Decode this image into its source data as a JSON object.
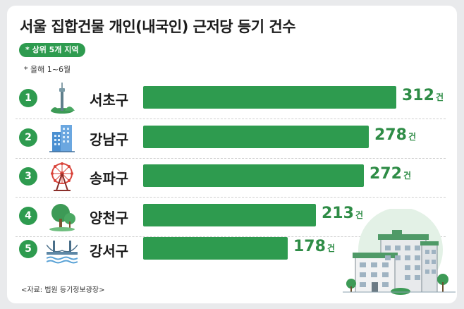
{
  "title": "서울 집합건물 개인(내국인) 근저당 등기 건수",
  "badge": "* 상위 5개 지역",
  "note": "* 올해 1~6월",
  "unit": "건",
  "source": "<자료: 법원 등기정보광장>",
  "colors": {
    "bar": "#2e9b4f",
    "value": "#2e8c46",
    "rank": "#2e9b4f"
  },
  "chart_data": {
    "type": "bar",
    "orientation": "horizontal",
    "title": "서울 집합건물 개인(내국인) 근저당 등기 건수",
    "subtitle": "* 상위 5개 지역",
    "categories": [
      "서초구",
      "강남구",
      "송파구",
      "양천구",
      "강서구"
    ],
    "values": [
      312,
      278,
      272,
      213,
      178
    ],
    "ranks": [
      "1",
      "2",
      "3",
      "4",
      "5"
    ],
    "icons": [
      "tower-icon",
      "office-building-icon",
      "ferris-wheel-icon",
      "tree-icon",
      "bridge-icon"
    ],
    "unit": "건",
    "xlim": [
      0,
      312
    ],
    "grid": false,
    "legend": "none"
  }
}
